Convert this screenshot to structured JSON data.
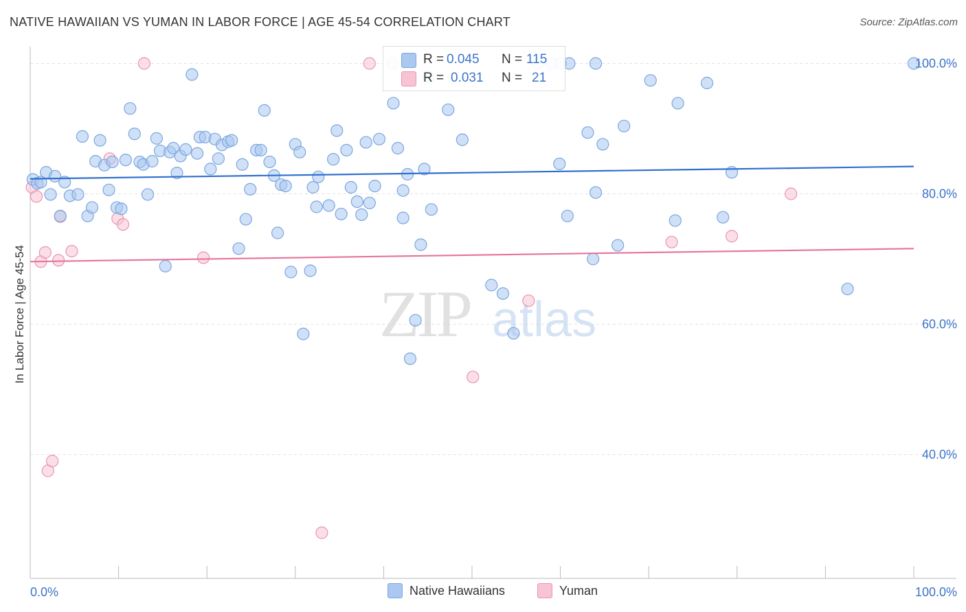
{
  "title": "NATIVE HAWAIIAN VS YUMAN IN LABOR FORCE | AGE 45-54 CORRELATION CHART",
  "source": "Source: ZipAtlas.com",
  "watermark": {
    "zip": "ZIP",
    "atlas": "atlas"
  },
  "stats": [
    {
      "r_label": "R =",
      "r_value": "0.045",
      "n_label": "N =",
      "n_value": "115",
      "color": "#aac8f0",
      "border": "#7aa6e0"
    },
    {
      "r_label": "R =",
      "r_value": "0.031",
      "n_label": "N =",
      "n_value": "21",
      "color": "#f8c4d4",
      "border": "#eb93b0"
    }
  ],
  "legend": [
    {
      "label": "Native Hawaiians",
      "color": "#aac8f0",
      "border": "#7aa6e0"
    },
    {
      "label": "Yuman",
      "color": "#f8c4d4",
      "border": "#eb93b0"
    }
  ],
  "chart_data": {
    "type": "scatter",
    "ylabel": "In Labor Force | Age 45-54",
    "xlim": [
      0,
      100
    ],
    "ylim": [
      21,
      103
    ],
    "x_tick_labels": [
      "0.0%",
      "100.0%"
    ],
    "y_ticks": [
      {
        "value": 100,
        "label": "100.0%"
      },
      {
        "value": 80,
        "label": "80.0%"
      },
      {
        "value": 60,
        "label": "60.0%"
      },
      {
        "value": 40,
        "label": "40.0%"
      }
    ],
    "series": [
      {
        "name": "Native Hawaiians",
        "color": "#aac8f0",
        "border": "#7aa6e0",
        "line_color": "#2f6fce",
        "trend": [
          [
            0,
            82.3
          ],
          [
            100,
            84.2
          ]
        ],
        "points": [
          [
            0.3,
            82.2
          ],
          [
            0.8,
            81.6
          ],
          [
            1.2,
            81.8
          ],
          [
            1.8,
            83.3
          ],
          [
            2.3,
            79.9
          ],
          [
            2.8,
            82.7
          ],
          [
            3.4,
            76.6
          ],
          [
            3.9,
            81.8
          ],
          [
            4.5,
            79.7
          ],
          [
            5.4,
            79.9
          ],
          [
            5.9,
            88.8
          ],
          [
            6.5,
            76.6
          ],
          [
            7.0,
            77.9
          ],
          [
            7.4,
            85.0
          ],
          [
            7.9,
            88.2
          ],
          [
            8.4,
            84.4
          ],
          [
            8.9,
            80.6
          ],
          [
            9.3,
            84.9
          ],
          [
            9.8,
            77.9
          ],
          [
            10.3,
            77.7
          ],
          [
            10.8,
            85.2
          ],
          [
            11.3,
            93.1
          ],
          [
            11.8,
            89.2
          ],
          [
            12.4,
            84.9
          ],
          [
            12.8,
            84.5
          ],
          [
            13.3,
            79.9
          ],
          [
            13.8,
            85.0
          ],
          [
            14.3,
            88.5
          ],
          [
            14.7,
            86.6
          ],
          [
            15.3,
            68.9
          ],
          [
            15.8,
            86.4
          ],
          [
            16.2,
            87.0
          ],
          [
            16.6,
            83.2
          ],
          [
            17.0,
            85.8
          ],
          [
            17.6,
            86.8
          ],
          [
            18.3,
            98.3
          ],
          [
            18.9,
            86.2
          ],
          [
            19.2,
            88.7
          ],
          [
            19.8,
            88.7
          ],
          [
            20.4,
            83.8
          ],
          [
            20.9,
            88.4
          ],
          [
            21.3,
            85.4
          ],
          [
            21.7,
            87.5
          ],
          [
            22.4,
            88.0
          ],
          [
            22.8,
            88.2
          ],
          [
            23.6,
            71.6
          ],
          [
            24.0,
            84.5
          ],
          [
            24.4,
            76.1
          ],
          [
            24.9,
            80.7
          ],
          [
            25.6,
            86.7
          ],
          [
            26.1,
            86.7
          ],
          [
            26.5,
            92.8
          ],
          [
            27.1,
            84.9
          ],
          [
            27.6,
            82.8
          ],
          [
            28.0,
            74.0
          ],
          [
            28.4,
            81.4
          ],
          [
            28.9,
            81.2
          ],
          [
            29.5,
            68.0
          ],
          [
            30.0,
            87.6
          ],
          [
            30.5,
            86.4
          ],
          [
            30.9,
            58.5
          ],
          [
            31.7,
            68.2
          ],
          [
            32.0,
            81.0
          ],
          [
            32.4,
            78.0
          ],
          [
            32.6,
            82.6
          ],
          [
            33.8,
            78.2
          ],
          [
            34.3,
            85.3
          ],
          [
            34.7,
            89.7
          ],
          [
            35.2,
            76.9
          ],
          [
            35.8,
            86.7
          ],
          [
            36.3,
            81.0
          ],
          [
            37.0,
            78.8
          ],
          [
            37.5,
            76.8
          ],
          [
            38.0,
            87.9
          ],
          [
            38.4,
            78.6
          ],
          [
            39.0,
            81.2
          ],
          [
            39.5,
            88.4
          ],
          [
            41.1,
            93.9
          ],
          [
            41.6,
            87.0
          ],
          [
            42.2,
            80.5
          ],
          [
            42.2,
            76.3
          ],
          [
            42.7,
            83.0
          ],
          [
            43.0,
            54.7
          ],
          [
            43.6,
            60.6
          ],
          [
            44.2,
            72.2
          ],
          [
            44.6,
            83.8
          ],
          [
            45.0,
            98.0
          ],
          [
            45.4,
            77.6
          ],
          [
            47.3,
            92.9
          ],
          [
            48.9,
            88.3
          ],
          [
            52.2,
            66.0
          ],
          [
            53.5,
            64.7
          ],
          [
            54.7,
            58.6
          ],
          [
            59.9,
            84.6
          ],
          [
            60.8,
            76.6
          ],
          [
            63.1,
            89.4
          ],
          [
            63.7,
            70.0
          ],
          [
            64.0,
            80.2
          ],
          [
            64.8,
            87.6
          ],
          [
            66.5,
            72.1
          ],
          [
            67.2,
            90.4
          ],
          [
            70.2,
            97.4
          ],
          [
            73.0,
            75.9
          ],
          [
            73.3,
            93.9
          ],
          [
            76.6,
            97.0
          ],
          [
            78.4,
            76.4
          ],
          [
            79.4,
            83.3
          ],
          [
            92.5,
            65.4
          ],
          [
            100.0,
            100.0
          ],
          [
            41.0,
            100.0
          ],
          [
            61.0,
            100.0
          ],
          [
            64.0,
            100.0
          ],
          [
            57.5,
            100.0
          ],
          [
            60.0,
            100.0
          ],
          [
            59.0,
            100.0
          ]
        ]
      },
      {
        "name": "Yuman",
        "color": "#f8c4d4",
        "border": "#eb93b0",
        "line_color": "#e5739b",
        "trend": [
          [
            0,
            69.6
          ],
          [
            100,
            71.6
          ]
        ],
        "points": [
          [
            0.2,
            81.0
          ],
          [
            0.7,
            79.6
          ],
          [
            1.2,
            69.6
          ],
          [
            1.7,
            71.0
          ],
          [
            2.0,
            37.5
          ],
          [
            2.5,
            39.0
          ],
          [
            3.2,
            69.8
          ],
          [
            3.4,
            76.5
          ],
          [
            4.7,
            71.2
          ],
          [
            9.0,
            85.4
          ],
          [
            9.9,
            76.2
          ],
          [
            10.5,
            75.3
          ],
          [
            12.9,
            100.0
          ],
          [
            19.6,
            70.2
          ],
          [
            33.0,
            28.0
          ],
          [
            38.4,
            100.0
          ],
          [
            50.1,
            51.9
          ],
          [
            56.4,
            63.6
          ],
          [
            72.6,
            72.6
          ],
          [
            79.4,
            73.5
          ],
          [
            86.1,
            80.0
          ]
        ]
      }
    ]
  }
}
